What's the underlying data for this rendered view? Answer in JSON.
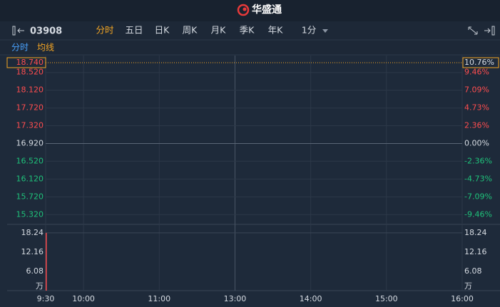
{
  "app_name": "华盛通",
  "toolbar": {
    "symbol": "03908",
    "tabs": [
      "分时",
      "五日",
      "日K",
      "周K",
      "月K",
      "季K",
      "年K",
      "1分"
    ],
    "active_tab": 0
  },
  "subtabs": [
    "分时",
    "均线"
  ],
  "chart_data": [
    {
      "type": "line",
      "ylim": [
        15.1,
        18.9
      ],
      "yticks": [
        {
          "value": 18.52,
          "label": "18.520"
        },
        {
          "value": 18.12,
          "label": "18.120"
        },
        {
          "value": 17.72,
          "label": "17.720"
        },
        {
          "value": 17.32,
          "label": "17.320"
        },
        {
          "value": 16.92,
          "label": "16.920"
        },
        {
          "value": 16.52,
          "label": "16.520"
        },
        {
          "value": 16.12,
          "label": "16.120"
        },
        {
          "value": 15.72,
          "label": "15.720"
        },
        {
          "value": 15.32,
          "label": "15.320"
        }
      ],
      "y2lim": [
        -10.76,
        11.7
      ],
      "y2ticks": [
        {
          "value": 9.46,
          "label": "9.46%"
        },
        {
          "value": 7.09,
          "label": "7.09%"
        },
        {
          "value": 4.73,
          "label": "4.73%"
        },
        {
          "value": 2.36,
          "label": "2.36%"
        },
        {
          "value": 0,
          "label": "0.00%"
        },
        {
          "value": -2.36,
          "label": "-2.36%"
        },
        {
          "value": -4.73,
          "label": "-4.73%"
        },
        {
          "value": -7.09,
          "label": "-7.09%"
        },
        {
          "value": -9.46,
          "label": "-9.46%"
        }
      ],
      "base_price": 16.92,
      "last_price": {
        "value": 18.74,
        "label": "18.740",
        "change": 10.76,
        "change_label": "10.76%",
        "color": "#f5a623"
      },
      "up_color": "#ff4d4f",
      "down_color": "#1fc27a",
      "flat_color": "#d6dbe2",
      "grid": true
    },
    {
      "type": "bar",
      "x": [
        0
      ],
      "values": [
        18.24
      ],
      "color": "#ff4d4f",
      "xlim": [
        0,
        330
      ],
      "xticks": [
        {
          "value": 0,
          "label": "9:30"
        },
        {
          "value": 30,
          "label": "10:00"
        },
        {
          "value": 90,
          "label": "11:00"
        },
        {
          "value": 150,
          "label": "13:00"
        },
        {
          "value": 210,
          "label": "14:00"
        },
        {
          "value": 270,
          "label": "15:00"
        },
        {
          "value": 330,
          "label": "16:00"
        }
      ],
      "ylim": [
        0,
        19.8
      ],
      "yticks": [
        6.08,
        12.16,
        18.24
      ],
      "unit_label": "万",
      "grid": true
    }
  ]
}
